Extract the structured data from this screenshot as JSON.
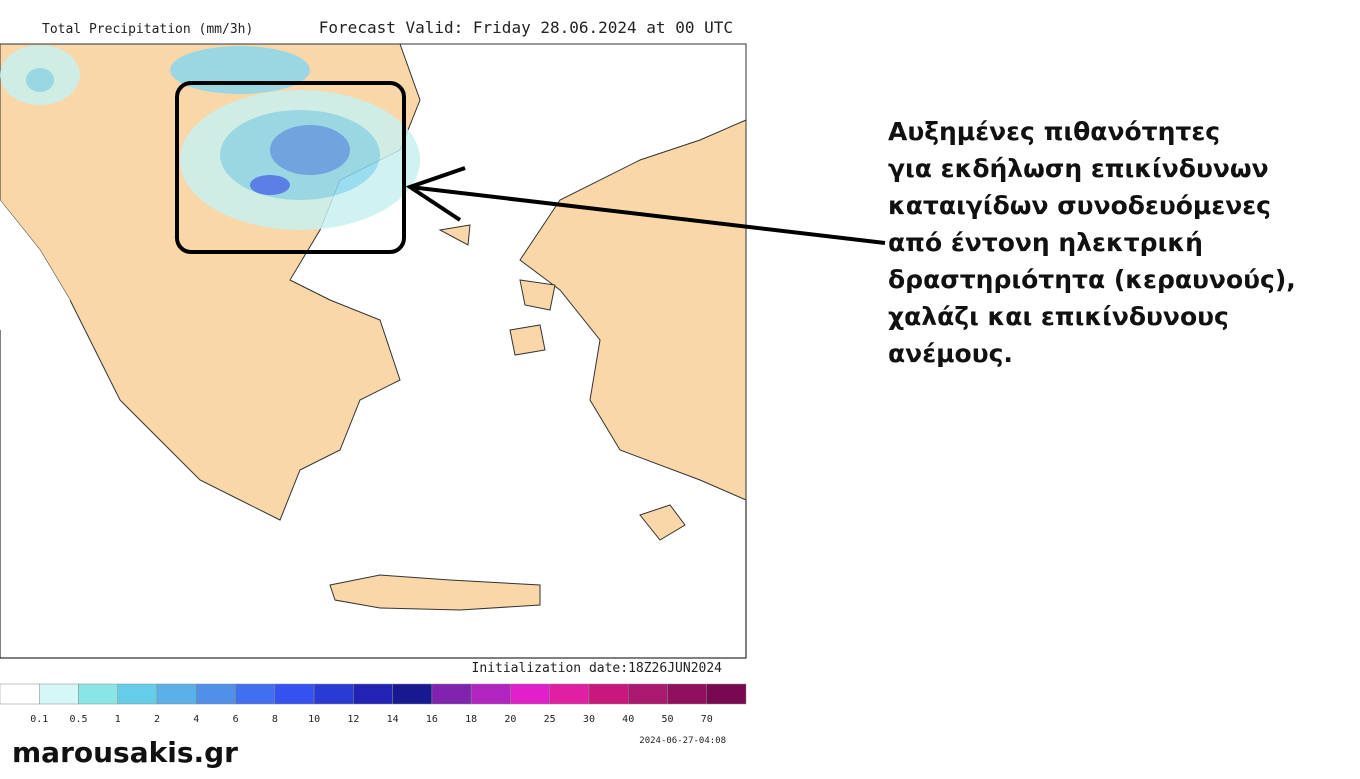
{
  "header": {
    "title": "Total Precipitation (mm/3h)",
    "forecast": "Forecast Valid:  Friday 28.06.2024 at 00 UTC"
  },
  "footer": {
    "init": "Initialization date:18Z26JUN2024",
    "stamp": "2024-06-27-04:08",
    "site": "marousakis.gr"
  },
  "legend": {
    "colors": [
      "#ffffff",
      "#d6f7f7",
      "#8ae6e6",
      "#66cde8",
      "#5ab0e8",
      "#5090e8",
      "#4070f0",
      "#3352f0",
      "#2a3ad4",
      "#2222b4",
      "#181890",
      "#8024b0",
      "#b224c0",
      "#e020c8",
      "#e020a2",
      "#c8187e",
      "#aa1870",
      "#90105e",
      "#780850"
    ],
    "labels": [
      "0.1",
      "0.5",
      "1",
      "2",
      "4",
      "6",
      "8",
      "10",
      "12",
      "14",
      "16",
      "18",
      "20",
      "25",
      "30",
      "40",
      "50",
      "70"
    ]
  },
  "annotation": {
    "lines": [
      "Αυξημένες πιθανότητες",
      "για εκδήλωση επικίνδυνων",
      "καταιγίδων συνοδευόμενες",
      "από έντονη ηλεκτρική",
      "δραστηριότητα (κεραυνούς),",
      "χαλάζι και επικίνδυνους",
      "ανέμους."
    ]
  }
}
